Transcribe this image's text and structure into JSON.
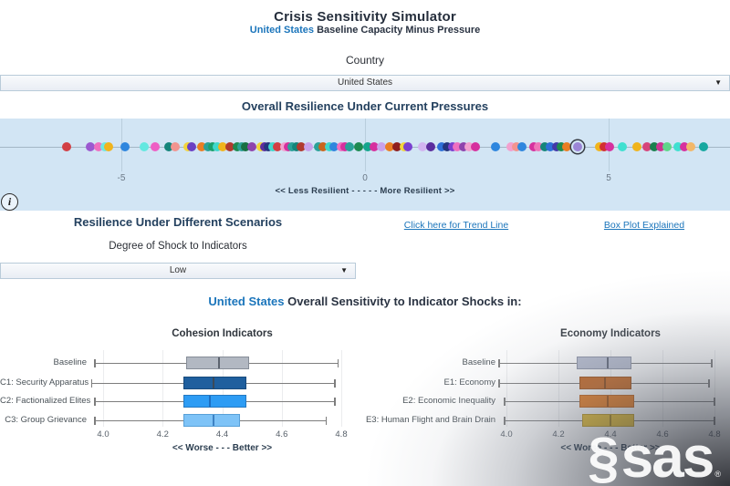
{
  "header": {
    "title": "Crisis Sensitivity Simulator",
    "subtitle_country": "United States",
    "subtitle_rest": " Baseline Capacity Minus Pressure"
  },
  "country": {
    "label": "Country",
    "value": "United States"
  },
  "strip": {
    "heading": "Overall Resilience Under Current Pressures",
    "info_icon": "i"
  },
  "scenarios": {
    "heading": "Resilience Under Different Scenarios",
    "trend_link": "Click here for Trend Line",
    "boxplot_link": "Box Plot Explained",
    "shock_label": "Degree of Shock to Indicators",
    "shock_value": "Low"
  },
  "sensitivity": {
    "country": "United States",
    "rest": " Overall Sensitivity to Indicator Shocks in:"
  },
  "brand": {
    "swirl": "§",
    "name": "sas",
    "registered": "®"
  },
  "chart_data": [
    {
      "type": "scatter",
      "variant": "strip-plot",
      "title": "Overall Resilience Under Current Pressures",
      "xlabel": "<< Less Resilient - - - - - More Resilient >>",
      "xlim": [
        -7.5,
        7.5
      ],
      "xticks": [
        -5,
        0,
        5
      ],
      "grid": "vertical-at-ticks",
      "selected_point": {
        "x": 4.37,
        "color": "#9b85d6"
      },
      "points": [
        {
          "x": -6.12,
          "c": "#d23f44"
        },
        {
          "x": -5.63,
          "c": "#9b59d0"
        },
        {
          "x": -5.47,
          "c": "#ef6fc0"
        },
        {
          "x": -5.33,
          "c": "#6ee6e2"
        },
        {
          "x": -5.26,
          "c": "#f0b41c"
        },
        {
          "x": -4.92,
          "c": "#2e86de"
        },
        {
          "x": -4.53,
          "c": "#63e8e0"
        },
        {
          "x": -4.31,
          "c": "#ee5fc4"
        },
        {
          "x": -4.03,
          "c": "#14857a"
        },
        {
          "x": -3.89,
          "c": "#f2948f"
        },
        {
          "x": -3.63,
          "c": "#f2d43c"
        },
        {
          "x": -3.55,
          "c": "#6a3fc4"
        },
        {
          "x": -3.36,
          "c": "#ea7e23"
        },
        {
          "x": -3.23,
          "c": "#2aa198"
        },
        {
          "x": -3.13,
          "c": "#19a06c"
        },
        {
          "x": -3.03,
          "c": "#3fd8cb"
        },
        {
          "x": -2.93,
          "c": "#f0b41c"
        },
        {
          "x": -2.77,
          "c": "#b03a2e"
        },
        {
          "x": -2.63,
          "c": "#1d8a50"
        },
        {
          "x": -2.53,
          "c": "#2aa198"
        },
        {
          "x": -2.45,
          "c": "#186f43"
        },
        {
          "x": -2.33,
          "c": "#8e44ad"
        },
        {
          "x": -2.13,
          "c": "#f2d43c"
        },
        {
          "x": -2.06,
          "c": "#5b2d9e"
        },
        {
          "x": -1.98,
          "c": "#24357e"
        },
        {
          "x": -1.9,
          "c": "#3fd8cb"
        },
        {
          "x": -1.79,
          "c": "#d23f44"
        },
        {
          "x": -1.65,
          "c": "#f2a0cf"
        },
        {
          "x": -1.57,
          "c": "#d6309e"
        },
        {
          "x": -1.49,
          "c": "#2aa198"
        },
        {
          "x": -1.41,
          "c": "#14857a"
        },
        {
          "x": -1.31,
          "c": "#b03a2e"
        },
        {
          "x": -1.17,
          "c": "#c9a2ea"
        },
        {
          "x": -0.96,
          "c": "#2aa198"
        },
        {
          "x": -0.86,
          "c": "#c9661d"
        },
        {
          "x": -0.73,
          "c": "#3fd8cb"
        },
        {
          "x": -0.63,
          "c": "#2e86de"
        },
        {
          "x": -0.49,
          "c": "#ef6fc0"
        },
        {
          "x": -0.41,
          "c": "#d6309e"
        },
        {
          "x": -0.31,
          "c": "#2aa198"
        },
        {
          "x": -0.13,
          "c": "#1d8a50"
        },
        {
          "x": 0.05,
          "c": "#14a58d"
        },
        {
          "x": 0.18,
          "c": "#d6309e"
        },
        {
          "x": 0.34,
          "c": "#c9a2ea"
        },
        {
          "x": 0.5,
          "c": "#ea7e23"
        },
        {
          "x": 0.65,
          "c": "#8e1e1e"
        },
        {
          "x": 0.8,
          "c": "#f2d43c"
        },
        {
          "x": 0.88,
          "c": "#7a3fd0"
        },
        {
          "x": 1.18,
          "c": "#d2b4f0"
        },
        {
          "x": 1.35,
          "c": "#5b2d9e"
        },
        {
          "x": 1.58,
          "c": "#2e6fd8"
        },
        {
          "x": 1.69,
          "c": "#24357e"
        },
        {
          "x": 1.79,
          "c": "#7a3fd0"
        },
        {
          "x": 1.89,
          "c": "#ef6fc0"
        },
        {
          "x": 2.03,
          "c": "#8e44ad"
        },
        {
          "x": 2.13,
          "c": "#f2a0cf"
        },
        {
          "x": 2.26,
          "c": "#d6309e"
        },
        {
          "x": 2.68,
          "c": "#2e86de"
        },
        {
          "x": 2.99,
          "c": "#f2a0cf"
        },
        {
          "x": 3.11,
          "c": "#f2948f"
        },
        {
          "x": 3.23,
          "c": "#2e86de"
        },
        {
          "x": 3.46,
          "c": "#d6309e"
        },
        {
          "x": 3.56,
          "c": "#ef74b8"
        },
        {
          "x": 3.69,
          "c": "#14857a"
        },
        {
          "x": 3.81,
          "c": "#2e6fd8"
        },
        {
          "x": 3.93,
          "c": "#4338a8"
        },
        {
          "x": 4.03,
          "c": "#1d8a50"
        },
        {
          "x": 4.13,
          "c": "#ea7e23"
        },
        {
          "x": 4.82,
          "c": "#f0b41c"
        },
        {
          "x": 4.91,
          "c": "#d23030"
        },
        {
          "x": 5.01,
          "c": "#d6309e"
        },
        {
          "x": 5.29,
          "c": "#3fe0d0"
        },
        {
          "x": 5.58,
          "c": "#f0b41c"
        },
        {
          "x": 5.79,
          "c": "#d6457a"
        },
        {
          "x": 5.93,
          "c": "#1a7f4e"
        },
        {
          "x": 6.06,
          "c": "#cc3390"
        },
        {
          "x": 6.19,
          "c": "#5fd68a"
        },
        {
          "x": 6.43,
          "c": "#3fe0d0"
        },
        {
          "x": 6.56,
          "c": "#d6309e"
        },
        {
          "x": 6.69,
          "c": "#f2b86a"
        },
        {
          "x": 6.94,
          "c": "#17a8a0"
        }
      ]
    },
    {
      "type": "boxplot",
      "title": "Cohesion Indicators",
      "orientation": "horizontal",
      "xlabel": "<< Worse - - - Better >>",
      "xlim": [
        3.93,
        4.88
      ],
      "xticks": [
        4.0,
        4.2,
        4.4,
        4.6,
        4.8
      ],
      "xtick_labels": [
        "4.0",
        "4.2",
        "4.4",
        "4.6",
        "4.8"
      ],
      "rows": [
        {
          "label": "Baseline",
          "whisker_low": 3.97,
          "q1": 4.28,
          "median": 4.39,
          "q3": 4.49,
          "whisker_high": 4.79,
          "fill": "#b2b8c2",
          "border": "#868d98",
          "median_color": "#5d646f"
        },
        {
          "label": "C1: Security Apparatus",
          "whisker_low": 3.96,
          "q1": 4.27,
          "median": 4.37,
          "q3": 4.48,
          "whisker_high": 4.78,
          "fill": "#1f5f9e",
          "border": "#174a7c",
          "median_color": "#3c4a58"
        },
        {
          "label": "C2: Factionalized Elites",
          "whisker_low": 3.97,
          "q1": 4.27,
          "median": 4.36,
          "q3": 4.48,
          "whisker_high": 4.78,
          "fill": "#2d9cf4",
          "border": "#2479c2",
          "median_color": "#1b6ec2"
        },
        {
          "label": "C3: Group Grievance",
          "whisker_low": 3.97,
          "q1": 4.27,
          "median": 4.37,
          "q3": 4.46,
          "whisker_high": 4.75,
          "fill": "#7ec3f7",
          "border": "#58a0d8",
          "median_color": "#3d82c4"
        }
      ]
    },
    {
      "type": "boxplot",
      "title": "Economy Indicators",
      "orientation": "horizontal",
      "xlabel": "<< Worse - - - Better >>",
      "xlim": [
        3.93,
        4.88
      ],
      "xticks": [
        4.0,
        4.2,
        4.4,
        4.6,
        4.8
      ],
      "xtick_labels": [
        "4.0",
        "4.2",
        "4.4",
        "4.6",
        "4.8"
      ],
      "rows": [
        {
          "label": "Baseline",
          "whisker_low": 3.97,
          "q1": 4.27,
          "median": 4.39,
          "q3": 4.48,
          "whisker_high": 4.79,
          "fill": "#b7bdd0",
          "border": "#8d93a6",
          "median_color": "#5f6678"
        },
        {
          "label": "E1: Economy",
          "whisker_low": 3.97,
          "q1": 4.28,
          "median": 4.38,
          "q3": 4.48,
          "whisker_high": 4.78,
          "fill": "#c9661d",
          "border": "#9e4f15",
          "median_color": "#8a4512"
        },
        {
          "label": "E2: Economic Inequality",
          "whisker_low": 3.99,
          "q1": 4.28,
          "median": 4.39,
          "q3": 4.49,
          "whisker_high": 4.8,
          "fill": "#ee7e1f",
          "border": "#c36317",
          "median_color": "#a85410"
        },
        {
          "label": "E3: Human Flight and Brain Drain",
          "whisker_low": 3.99,
          "q1": 4.29,
          "median": 4.4,
          "q3": 4.49,
          "whisker_high": 4.8,
          "fill": "#edc32f",
          "border": "#c29d1f",
          "median_color": "#a8861a"
        }
      ]
    }
  ]
}
